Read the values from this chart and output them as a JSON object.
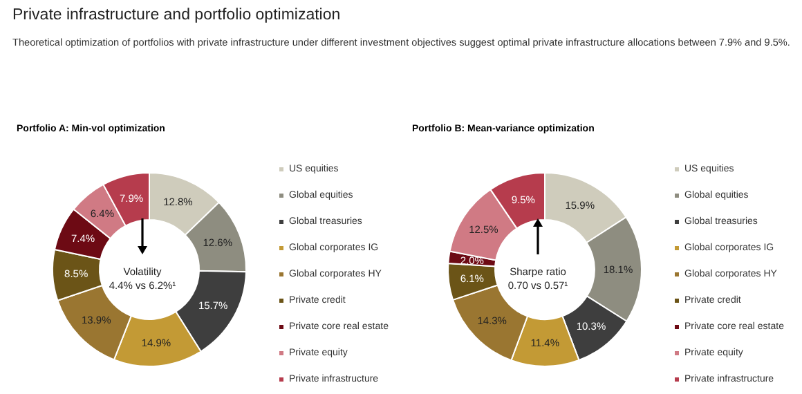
{
  "chart_data": [
    {
      "type": "donut",
      "title": "Portfolio A: Min-vol optimization",
      "annotations": [
        "Private infrastructure and portfolio optimization",
        "Theoretical optimization of portfolios with private infrastructure under different investment objectives suggest optimal private infrastructure allocations between 7.9% and 9.5%.",
        "Volatility",
        "4.4% vs 6.2%¹"
      ],
      "categories": [
        "US equities",
        "Global equities",
        "Global treasuries",
        "Global corporates IG",
        "Global corporates HY",
        "Private credit",
        "Private core real estate",
        "Private equity",
        "Private infrastructure"
      ],
      "values": [
        12.8,
        12.6,
        15.7,
        14.9,
        13.9,
        8.5,
        7.4,
        6.4,
        7.9
      ],
      "colors": [
        "#cfccbc",
        "#8e8d80",
        "#3e3e3e",
        "#c39a35",
        "#9a7631",
        "#6b5417",
        "#6d0a14",
        "#d07a84",
        "#b63c4d"
      ],
      "value_labels": [
        "12.8%",
        "12.6%",
        "15.7%",
        "14.9%",
        "13.9%",
        "8.5%",
        "7.4%",
        "6.4%",
        "7.9%"
      ],
      "legend": "right"
    },
    {
      "type": "donut",
      "title": "Portfolio B: Mean-variance optimization",
      "annotations": [
        "Sharpe ratio",
        "0.70 vs 0.57¹"
      ],
      "categories": [
        "US equities",
        "Global equities",
        "Global treasuries",
        "Global corporates IG",
        "Global corporates HY",
        "Private credit",
        "Private core real estate",
        "Private equity",
        "Private infrastructure"
      ],
      "values": [
        15.9,
        18.1,
        10.3,
        11.4,
        14.3,
        6.1,
        2.0,
        12.5,
        9.5
      ],
      "colors": [
        "#cfccbc",
        "#8e8d80",
        "#3e3e3e",
        "#c39a35",
        "#9a7631",
        "#6b5417",
        "#6d0a14",
        "#d07a84",
        "#b63c4d"
      ],
      "value_labels": [
        "15.9%",
        "18.1%",
        "10.3%",
        "11.4%",
        "14.3%",
        "6.1%",
        "2.0%",
        "12.5%",
        "9.5%"
      ],
      "legend": "right"
    }
  ]
}
